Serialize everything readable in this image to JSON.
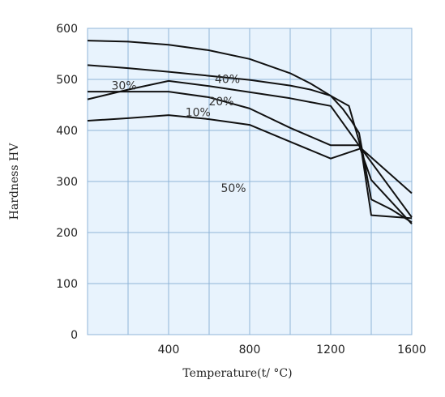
{
  "chart_data": {
    "type": "line",
    "xlabel": "Temperature(t/ °C)",
    "ylabel": "Hardness HV",
    "xlim": [
      0,
      1600
    ],
    "ylim": [
      0,
      600
    ],
    "xticks": [
      400,
      800,
      1200,
      1600
    ],
    "yticks": [
      0,
      100,
      200,
      300,
      400,
      500,
      600
    ],
    "grid": true,
    "grid_x_step": 200,
    "plot_background": "#e8f3fd",
    "grid_color": "#8fb4d8",
    "line_color": "#111111",
    "series": [
      {
        "name": "50%",
        "label_at": [
          720,
          287
        ],
        "points": [
          [
            0,
            576
          ],
          [
            200,
            574
          ],
          [
            400,
            568
          ],
          [
            600,
            557
          ],
          [
            800,
            540
          ],
          [
            1000,
            512
          ],
          [
            1100,
            492
          ],
          [
            1200,
            468
          ],
          [
            1260,
            442
          ],
          [
            1300,
            420
          ],
          [
            1340,
            395
          ],
          [
            1400,
            265
          ],
          [
            1500,
            245
          ],
          [
            1600,
            220
          ]
        ]
      },
      {
        "name": "40%",
        "label_at": [
          690,
          501
        ],
        "points": [
          [
            0,
            528
          ],
          [
            200,
            522
          ],
          [
            400,
            515
          ],
          [
            600,
            507
          ],
          [
            800,
            499
          ],
          [
            1000,
            488
          ],
          [
            1100,
            480
          ],
          [
            1200,
            468
          ],
          [
            1290,
            448
          ],
          [
            1350,
            365
          ],
          [
            1600,
            277
          ]
        ]
      },
      {
        "name": "30%",
        "label_at": [
          180,
          488
        ],
        "points": [
          [
            0,
            461
          ],
          [
            200,
            480
          ],
          [
            400,
            497
          ],
          [
            600,
            487
          ],
          [
            800,
            475
          ],
          [
            1000,
            463
          ],
          [
            1200,
            448
          ],
          [
            1350,
            365
          ],
          [
            1600,
            230
          ]
        ]
      },
      {
        "name": "20%",
        "label_at": [
          660,
          457
        ],
        "points": [
          [
            0,
            476
          ],
          [
            200,
            476
          ],
          [
            400,
            476
          ],
          [
            600,
            465
          ],
          [
            800,
            443
          ],
          [
            1000,
            405
          ],
          [
            1200,
            371
          ],
          [
            1340,
            371
          ],
          [
            1400,
            303
          ],
          [
            1600,
            217
          ]
        ]
      },
      {
        "name": "10%",
        "label_at": [
          545,
          436
        ],
        "points": [
          [
            0,
            419
          ],
          [
            200,
            424
          ],
          [
            400,
            430
          ],
          [
            600,
            422
          ],
          [
            800,
            411
          ],
          [
            1000,
            378
          ],
          [
            1200,
            345
          ],
          [
            1350,
            365
          ],
          [
            1400,
            234
          ],
          [
            1600,
            228
          ]
        ]
      }
    ]
  }
}
